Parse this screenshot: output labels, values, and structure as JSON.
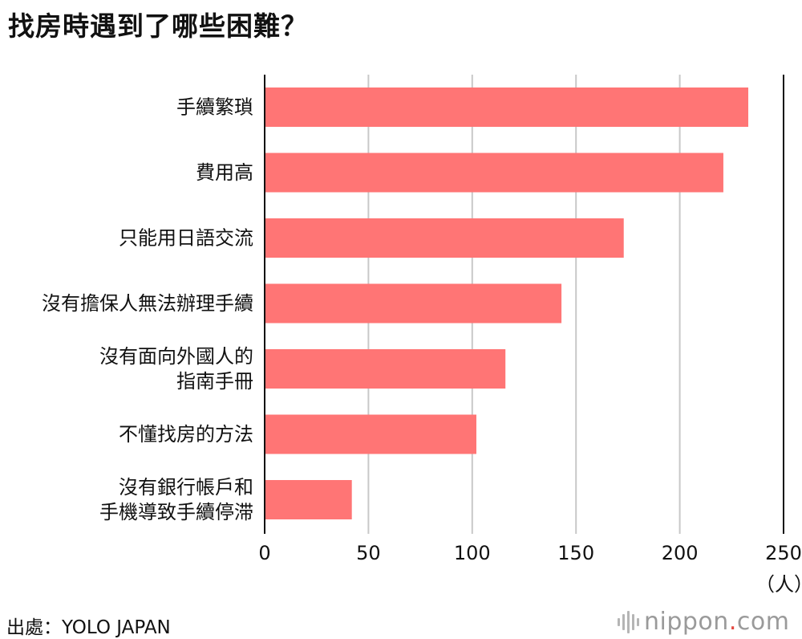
{
  "title": "找房時遇到了哪些困難？",
  "unit": "（人）",
  "source": "出處：YOLO JAPAN",
  "brand": {
    "name": "nippon",
    "dot": ".",
    "tld": "com",
    "icon": "sound-wave-icon"
  },
  "chart_data": {
    "type": "bar",
    "orientation": "horizontal",
    "title": "找房時遇到了哪些困難？",
    "xlabel": "（人）",
    "ylabel": "",
    "xlim": [
      0,
      250
    ],
    "ticks": [
      0,
      50,
      100,
      150,
      200,
      250
    ],
    "grid": true,
    "bar_color": "#ff7575",
    "categories": [
      [
        "手續繁瑣"
      ],
      [
        "費用高"
      ],
      [
        "只能用日語交流"
      ],
      [
        "沒有擔保人無法辦理手續"
      ],
      [
        "沒有面向外國人的",
        "指南手冊"
      ],
      [
        "不懂找房的方法"
      ],
      [
        "沒有銀行帳戶和",
        "手機導致手續停滞"
      ]
    ],
    "values": [
      233,
      221,
      173,
      143,
      116,
      102,
      42
    ]
  }
}
